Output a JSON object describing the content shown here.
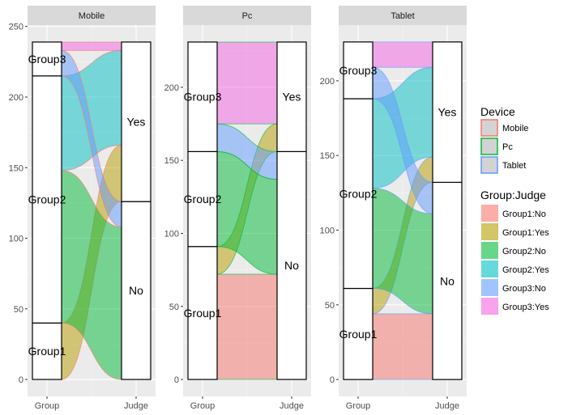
{
  "chart_data": [
    {
      "type": "alluvial",
      "facet": "Mobile",
      "axes": [
        "Group",
        "Judge"
      ],
      "ylim": [
        -12,
        251
      ],
      "yticks": [
        0,
        50,
        100,
        150,
        200,
        250
      ],
      "flows": [
        {
          "group": "Group1",
          "judge": "No",
          "value": 0
        },
        {
          "group": "Group1",
          "judge": "Yes",
          "value": 40
        },
        {
          "group": "Group2",
          "judge": "No",
          "value": 108
        },
        {
          "group": "Group2",
          "judge": "Yes",
          "value": 67
        },
        {
          "group": "Group3",
          "judge": "No",
          "value": 18
        },
        {
          "group": "Group3",
          "judge": "Yes",
          "value": 6
        }
      ]
    },
    {
      "type": "alluvial",
      "facet": "Pc",
      "axes": [
        "Group",
        "Judge"
      ],
      "ylim": [
        -11.6,
        242.6
      ],
      "yticks": [
        0,
        50,
        100,
        150,
        200
      ],
      "flows": [
        {
          "group": "Group1",
          "judge": "No",
          "value": 72
        },
        {
          "group": "Group1",
          "judge": "Yes",
          "value": 19
        },
        {
          "group": "Group2",
          "judge": "No",
          "value": 65
        },
        {
          "group": "Group2",
          "judge": "Yes",
          "value": 0
        },
        {
          "group": "Group3",
          "judge": "No",
          "value": 19
        },
        {
          "group": "Group3",
          "judge": "Yes",
          "value": 56
        }
      ]
    },
    {
      "type": "alluvial",
      "facet": "Tablet",
      "axes": [
        "Group",
        "Judge"
      ],
      "ylim": [
        -11.3,
        237.3
      ],
      "yticks": [
        0,
        50,
        100,
        150,
        200
      ],
      "flows": [
        {
          "group": "Group1",
          "judge": "No",
          "value": 44
        },
        {
          "group": "Group1",
          "judge": "Yes",
          "value": 17
        },
        {
          "group": "Group2",
          "judge": "No",
          "value": 67
        },
        {
          "group": "Group2",
          "judge": "Yes",
          "value": 60
        },
        {
          "group": "Group3",
          "judge": "No",
          "value": 21
        },
        {
          "group": "Group3",
          "judge": "Yes",
          "value": 17
        }
      ]
    }
  ],
  "groups": [
    "Group1",
    "Group2",
    "Group3"
  ],
  "judges": [
    "No",
    "Yes"
  ],
  "legend": {
    "device_title": "Device",
    "devices": [
      {
        "label": "Mobile",
        "color": "#F8766D"
      },
      {
        "label": "Pc",
        "color": "#00BA38"
      },
      {
        "label": "Tablet",
        "color": "#619CFF"
      }
    ],
    "fill_title": "Group:Judge",
    "fills": [
      {
        "label": "Group1:No",
        "color": "#F8766D"
      },
      {
        "label": "Group1:Yes",
        "color": "#B79F00"
      },
      {
        "label": "Group2:No",
        "color": "#00BA38"
      },
      {
        "label": "Group2:Yes",
        "color": "#00BFC4"
      },
      {
        "label": "Group3:No",
        "color": "#619CFF"
      },
      {
        "label": "Group3:Yes",
        "color": "#F564E3"
      }
    ]
  }
}
